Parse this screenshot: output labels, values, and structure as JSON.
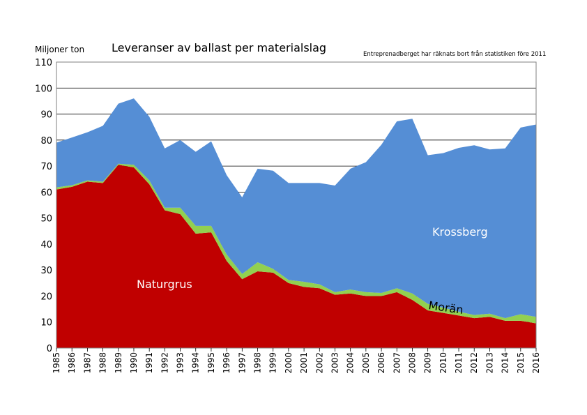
{
  "chart_data": {
    "type": "area",
    "stacked": true,
    "title": "Leveranser av ballast per materialslag",
    "ylabel": "Miljoner ton",
    "note": "Entreprenadberget har räknats bort från statistiken före 2011",
    "ylim": [
      0,
      110
    ],
    "yticks": [
      0,
      10,
      20,
      30,
      40,
      50,
      60,
      70,
      80,
      90,
      100,
      110
    ],
    "grid": true,
    "x": [
      "1985",
      "1986",
      "1987",
      "1988",
      "1989",
      "1990",
      "1991",
      "1992",
      "1993",
      "1994",
      "1995",
      "1996",
      "1997",
      "1998",
      "1999",
      "2000",
      "2001",
      "2002",
      "2003",
      "2004",
      "2005",
      "2006",
      "2007",
      "2008",
      "2009",
      "2010",
      "2011",
      "2012",
      "2013",
      "2014",
      "2015",
      "2016"
    ],
    "series": [
      {
        "name": "Naturgrus",
        "color": "#c00000",
        "values": [
          61,
          62,
          64,
          63.5,
          70.5,
          69.5,
          63,
          53,
          51.5,
          44,
          44.5,
          33.5,
          26.5,
          29.5,
          29,
          25,
          23.5,
          23,
          20.5,
          21,
          20,
          20,
          21.5,
          18.5,
          14.5,
          13.5,
          12.5,
          11.5,
          12,
          10.5,
          10.5,
          9.5
        ]
      },
      {
        "name": "Morän",
        "color": "#92d050",
        "values": [
          0.8,
          0.6,
          0.5,
          0.5,
          0.4,
          1,
          1.5,
          1,
          2.5,
          3,
          2.5,
          2.5,
          2,
          3.5,
          1.5,
          1.2,
          2,
          1.5,
          1,
          1.5,
          1.5,
          1.2,
          1.5,
          2.5,
          2.5,
          2,
          1.5,
          1.2,
          1.2,
          1,
          2.5,
          2.5
        ]
      },
      {
        "name": "Krossberg",
        "color": "#558ed5",
        "values": [
          17.2,
          18.4,
          18.5,
          21.5,
          23.1,
          25.5,
          24.5,
          22.8,
          26,
          28.5,
          32.5,
          30.5,
          29.5,
          36,
          37.7,
          37.3,
          38,
          39,
          41,
          46.5,
          50,
          57,
          64.2,
          67.2,
          57.2,
          59.5,
          63,
          65.3,
          63.2,
          65.3,
          71.8,
          74
        ]
      }
    ],
    "labels": [
      "Naturgrus",
      "Morän",
      "Krossberg"
    ]
  }
}
